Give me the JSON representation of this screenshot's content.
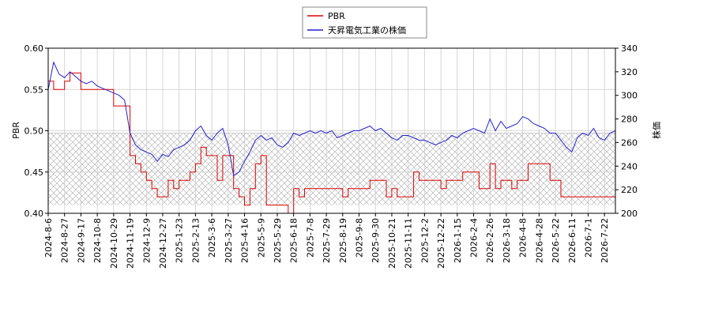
{
  "chart_data": {
    "type": "line",
    "categories": [
      "2024-8-6",
      null,
      null,
      "2024-8-27",
      null,
      null,
      "2024-9-17",
      null,
      null,
      "2024-10-8",
      null,
      null,
      "2024-10-29",
      null,
      null,
      "2024-11-19",
      null,
      null,
      "2024-12-9",
      null,
      null,
      "2024-12-27",
      null,
      null,
      "2025-1-23",
      null,
      null,
      "2025-2-13",
      null,
      null,
      "2025-3-6",
      null,
      null,
      "2025-3-27",
      null,
      null,
      "2025-4-16",
      null,
      null,
      "2025-5-9",
      null,
      null,
      "2025-5-29",
      null,
      null,
      "2025-6-18",
      null,
      null,
      "2025-7-8",
      null,
      null,
      "2025-7-29",
      null,
      null,
      "2025-8-19",
      null,
      null,
      "2025-9-8",
      null,
      null,
      "2025-9-30",
      null,
      null,
      "2025-10-21",
      null,
      null,
      "2025-11-11",
      null,
      null,
      "2025-12-2",
      null,
      null,
      "2025-12-22",
      null,
      null,
      "2026-1-15",
      null,
      null,
      "2026-2-4",
      null,
      null,
      "2026-2-26",
      null,
      null,
      "2026-3-18",
      null,
      null,
      "2026-4-8",
      null,
      null,
      "2026-4-28",
      null,
      null,
      "2026-5-22",
      null,
      null,
      "2026-6-11",
      null,
      null,
      "2026-7-1",
      null,
      null,
      "2026-7-22",
      null,
      null
    ],
    "series": [
      {
        "name": "PBR",
        "color": "#dd0000",
        "step": true,
        "values": [
          0.56,
          0.55,
          0.55,
          0.56,
          0.57,
          0.57,
          0.55,
          0.55,
          0.55,
          0.55,
          0.55,
          0.55,
          0.53,
          0.53,
          0.53,
          0.47,
          0.46,
          0.45,
          0.44,
          0.43,
          0.42,
          0.42,
          0.44,
          0.43,
          0.44,
          0.44,
          0.45,
          0.46,
          0.48,
          0.47,
          0.47,
          0.44,
          0.47,
          0.47,
          0.43,
          0.42,
          0.41,
          0.43,
          0.46,
          0.47,
          0.41,
          0.41,
          0.41,
          0.41,
          0.4,
          0.43,
          0.42,
          0.43,
          0.43,
          0.43,
          0.43,
          0.43,
          0.43,
          0.43,
          0.42,
          0.43,
          0.43,
          0.43,
          0.43,
          0.44,
          0.44,
          0.44,
          0.42,
          0.43,
          0.42,
          0.42,
          0.42,
          0.45,
          0.44,
          0.44,
          0.44,
          0.44,
          0.43,
          0.44,
          0.44,
          0.44,
          0.45,
          0.45,
          0.45,
          0.43,
          0.43,
          0.46,
          0.43,
          0.44,
          0.44,
          0.43,
          0.44,
          0.44,
          0.46,
          0.46,
          0.46,
          0.46,
          0.44,
          0.44,
          0.42,
          0.42,
          0.42,
          0.42,
          0.42,
          0.42,
          0.42,
          0.42,
          0.42,
          0.42,
          0.42
        ]
      },
      {
        "name": "天昇電気工業の株価",
        "color": "#2222cc",
        "axis": "y2",
        "values": [
          305,
          328,
          318,
          315,
          320,
          316,
          312,
          310,
          312,
          308,
          306,
          304,
          302,
          300,
          296,
          268,
          258,
          254,
          252,
          250,
          244,
          250,
          248,
          254,
          256,
          258,
          262,
          270,
          274,
          266,
          262,
          268,
          272,
          258,
          232,
          235,
          244,
          252,
          262,
          266,
          262,
          264,
          258,
          256,
          260,
          268,
          266,
          268,
          270,
          268,
          270,
          268,
          270,
          264,
          266,
          268,
          270,
          270,
          272,
          274,
          270,
          272,
          268,
          264,
          262,
          266,
          266,
          264,
          262,
          262,
          260,
          258,
          260,
          262,
          266,
          264,
          268,
          270,
          272,
          270,
          268,
          280,
          270,
          278,
          272,
          274,
          276,
          282,
          280,
          276,
          274,
          272,
          268,
          268,
          262,
          256,
          252,
          264,
          268,
          266,
          272,
          264,
          262,
          268,
          270
        ]
      }
    ],
    "ylabel": "PBR",
    "y2label": "株価",
    "ylim": [
      0.4,
      0.6
    ],
    "yticks": [
      {
        "value": 0.4,
        "label": "0.40"
      },
      0.45,
      {
        "value": 0.5,
        "label": "0.50"
      },
      0.55,
      {
        "value": 0.6,
        "label": "0.60"
      }
    ],
    "y2lim": [
      200,
      340
    ],
    "y2ticks": [
      200,
      220,
      240,
      260,
      280,
      300,
      320,
      340
    ],
    "shaded_range": [
      0.41,
      0.497
    ],
    "grid": true,
    "legend": "top"
  }
}
